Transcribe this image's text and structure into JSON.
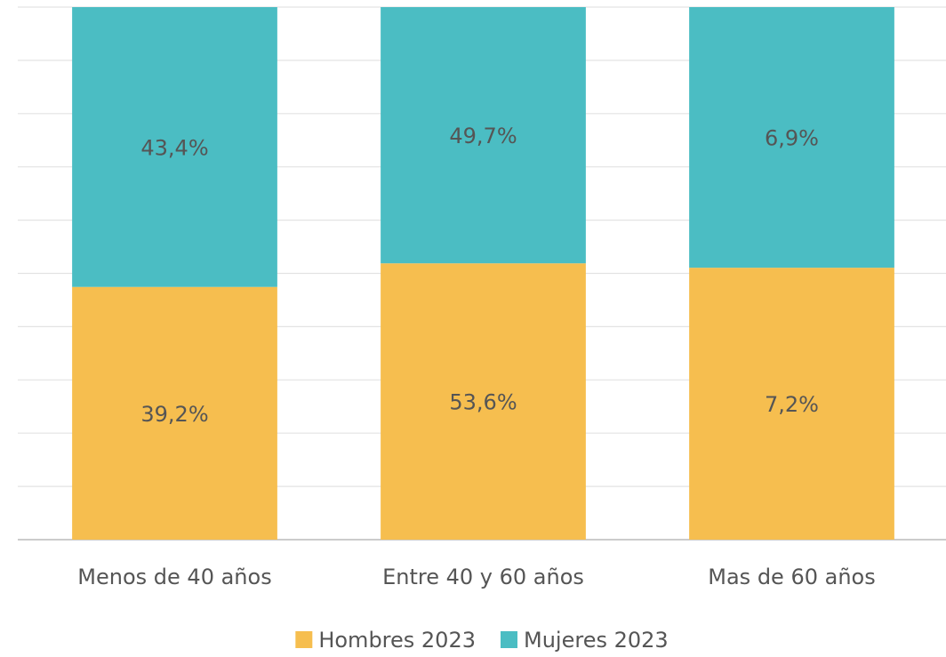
{
  "chart_data": {
    "type": "stacked_percent_bar",
    "categories": [
      "Menos de 40 años",
      "Entre 40 y 60 años",
      "Mas de 60 años"
    ],
    "series": [
      {
        "name": "Hombres 2023",
        "color": "#f6be4f",
        "values": [
          39.2,
          53.6,
          7.2
        ],
        "value_labels": [
          "39,2%",
          "53,6%",
          "7,2%"
        ]
      },
      {
        "name": "Mujeres 2023",
        "color": "#4bbdc3",
        "values": [
          43.4,
          49.7,
          6.9
        ],
        "value_labels": [
          "43,4%",
          "49,7%",
          "6,9%"
        ]
      }
    ],
    "ylim": [
      0,
      100
    ],
    "yticks": [
      0,
      10,
      20,
      30,
      40,
      50,
      60,
      70,
      80,
      90,
      100
    ],
    "ytick_labels": false,
    "grid": true,
    "legend": "bottom"
  }
}
